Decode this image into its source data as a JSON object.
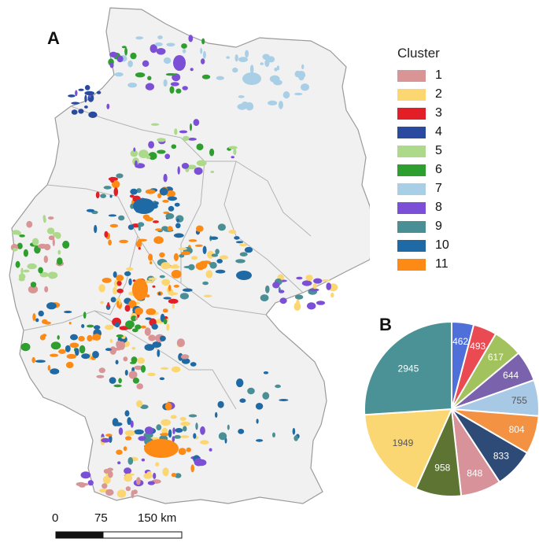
{
  "panels": {
    "map_label": "A",
    "pie_label": "B"
  },
  "legend": {
    "title": "Cluster",
    "items": [
      {
        "label": "1",
        "color": "#d99596"
      },
      {
        "label": "2",
        "color": "#fcd670"
      },
      {
        "label": "3",
        "color": "#e21f26"
      },
      {
        "label": "4",
        "color": "#2a4aa0"
      },
      {
        "label": "5",
        "color": "#acd98a"
      },
      {
        "label": "6",
        "color": "#2e9f2e"
      },
      {
        "label": "7",
        "color": "#a9cfe6"
      },
      {
        "label": "8",
        "color": "#7b4fd6"
      },
      {
        "label": "9",
        "color": "#4a8f96"
      },
      {
        "label": "10",
        "color": "#1f6aa4"
      },
      {
        "label": "11",
        "color": "#fc8a14"
      }
    ]
  },
  "scalebar": {
    "labels": [
      "0",
      "75",
      "150 km"
    ]
  },
  "chart_data": {
    "type": "pie",
    "slices": [
      {
        "value": 462,
        "color": "#4f6fd9"
      },
      {
        "value": 493,
        "color": "#ea4a52"
      },
      {
        "value": 617,
        "color": "#a1c25c"
      },
      {
        "value": 644,
        "color": "#7b62ad"
      },
      {
        "value": 755,
        "color": "#a7c9e6"
      },
      {
        "value": 804,
        "color": "#f49244"
      },
      {
        "value": 833,
        "color": "#2e4b78"
      },
      {
        "value": 848,
        "color": "#d8929a"
      },
      {
        "value": 958,
        "color": "#5d7433"
      },
      {
        "value": 1949,
        "color": "#fbd773"
      },
      {
        "value": 2945,
        "color": "#4a9296"
      }
    ]
  }
}
